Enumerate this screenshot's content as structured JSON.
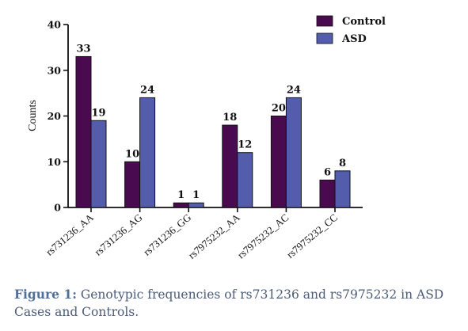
{
  "chart_data": {
    "type": "bar",
    "categories": [
      "rs731236_AA",
      "rs731236_AG",
      "rs731236_GG",
      "rs7975232_AA",
      "rs7975232_AC",
      "rs7975232_CC"
    ],
    "series": [
      {
        "name": "Control",
        "values": [
          33,
          10,
          1,
          18,
          20,
          6
        ],
        "color": "#4a0a4f"
      },
      {
        "name": "ASD",
        "values": [
          19,
          24,
          1,
          12,
          24,
          8
        ],
        "color": "#545dab"
      }
    ],
    "ylabel": "Counts",
    "ylim": [
      0,
      40
    ],
    "yticks": [
      0,
      10,
      20,
      30,
      40
    ],
    "grid": false,
    "legend_position": "top-right"
  },
  "caption": {
    "label": "Figure 1:",
    "text": " Genotypic frequencies of rs731236 and rs7975232 in ASD Cases and Controls."
  }
}
